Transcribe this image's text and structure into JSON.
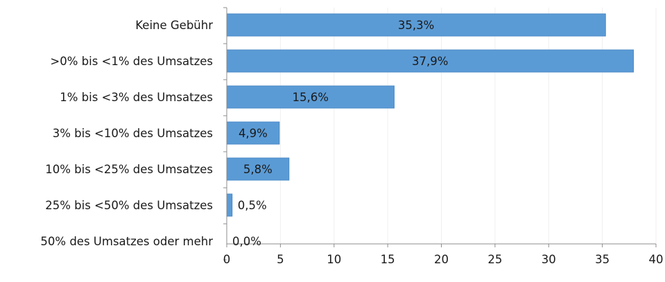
{
  "chart_data": {
    "type": "bar",
    "orientation": "horizontal",
    "title": "",
    "xlabel": "",
    "ylabel": "",
    "categories": [
      "Keine Gebühr",
      ">0% bis <1% des Umsatzes",
      "1% bis <3% des Umsatzes",
      "3% bis <10% des Umsatzes",
      "10% bis <25% des Umsatzes",
      "25% bis <50% des Umsatzes",
      "50% des Umsatzes oder mehr"
    ],
    "values": [
      35.3,
      37.9,
      15.6,
      4.9,
      5.8,
      0.5,
      0.0
    ],
    "data_labels": [
      "35,3%",
      "37,9%",
      "15,6%",
      "4,9%",
      "5,8%",
      "0,5%",
      "0,0%"
    ],
    "xlim": [
      0,
      40
    ],
    "x_ticks": [
      0,
      5,
      10,
      15,
      20,
      25,
      30,
      35,
      40
    ],
    "x_tick_labels": [
      "0",
      "5",
      "10",
      "15",
      "20",
      "25",
      "30",
      "35",
      "40"
    ],
    "grid": "vertical",
    "legend": "none",
    "bar_color": "#5b9bd5",
    "bar_edge_color": "#4a88c7",
    "grid_color": "#efefef",
    "axis_color": "#8c8c8c"
  }
}
